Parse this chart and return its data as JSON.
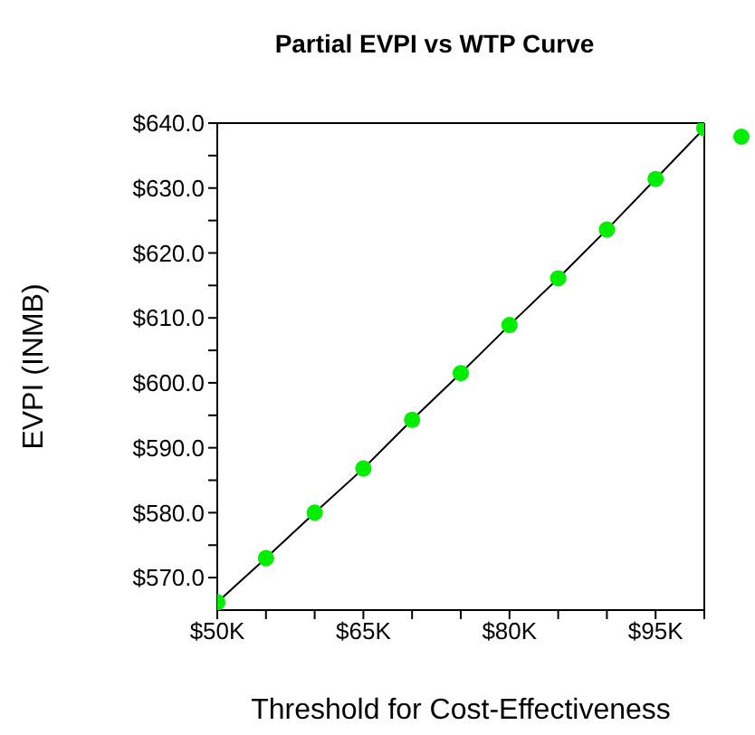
{
  "chart_data": {
    "type": "scatter",
    "title": "Partial EVPI vs WTP Curve",
    "xlabel": "Threshold for Cost-Effectiveness",
    "ylabel": "EVPI (INMB)",
    "x": [
      50,
      55,
      60,
      65,
      70,
      75,
      80,
      85,
      90,
      95,
      100
    ],
    "series": [
      {
        "color": "#00ee00",
        "marker": "circle",
        "values": [
          566.2,
          573.0,
          580.0,
          586.8,
          594.3,
          601.5,
          608.9,
          616.1,
          623.6,
          631.4,
          639.2
        ]
      },
      {
        "type": "line",
        "color": "#000000",
        "marker": "none",
        "values": [
          566.2,
          573.0,
          580.0,
          586.8,
          594.3,
          601.5,
          608.9,
          616.1,
          623.6,
          631.4,
          639.2
        ]
      }
    ],
    "xlim": [
      50,
      100
    ],
    "xticks": [
      {
        "value": 50,
        "label": "$50K"
      },
      {
        "value": 55,
        "label": null
      },
      {
        "value": 60,
        "label": null
      },
      {
        "value": 65,
        "label": "$65K"
      },
      {
        "value": 70,
        "label": null
      },
      {
        "value": 75,
        "label": null
      },
      {
        "value": 80,
        "label": "$80K"
      },
      {
        "value": 85,
        "label": null
      },
      {
        "value": 90,
        "label": null
      },
      {
        "value": 95,
        "label": "$95K"
      },
      {
        "value": 100,
        "label": null
      }
    ],
    "ylim": [
      565,
      640
    ],
    "yticks": [
      {
        "value": 570,
        "label": "$570.0"
      },
      {
        "value": 575,
        "label": null
      },
      {
        "value": 580,
        "label": "$580.0"
      },
      {
        "value": 585,
        "label": null
      },
      {
        "value": 590,
        "label": "$590.0"
      },
      {
        "value": 595,
        "label": null
      },
      {
        "value": 600,
        "label": "$600.0"
      },
      {
        "value": 605,
        "label": null
      },
      {
        "value": 610,
        "label": "$610.0"
      },
      {
        "value": 615,
        "label": null
      },
      {
        "value": 620,
        "label": "$620.0"
      },
      {
        "value": 625,
        "label": null
      },
      {
        "value": 630,
        "label": "$630.0"
      },
      {
        "value": 635,
        "label": null
      },
      {
        "value": 640,
        "label": "$640.0"
      }
    ],
    "grid": false
  }
}
